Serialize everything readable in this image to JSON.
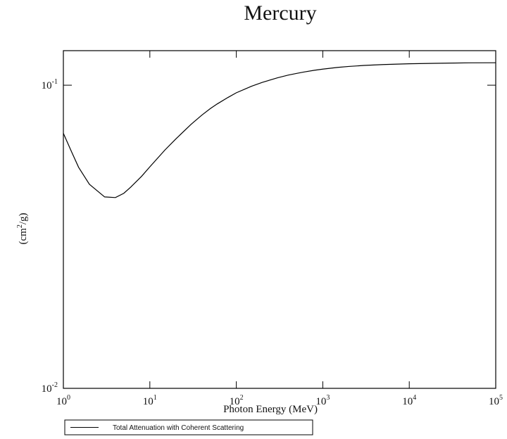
{
  "chart_data": {
    "type": "line",
    "title": "Mercury",
    "xlabel": "Photon Energy (MeV)",
    "ylabel": "(cm²/g)",
    "ylabel_parts": {
      "prefix": "(cm",
      "sup": "2",
      "suffix": "/g)"
    },
    "x_scale": "log",
    "y_scale": "log",
    "xlim": [
      1,
      100000
    ],
    "ylim": [
      0.01,
      0.13
    ],
    "x_ticks": [
      {
        "base": "10",
        "exp": "0",
        "value": 1
      },
      {
        "base": "10",
        "exp": "1",
        "value": 10
      },
      {
        "base": "10",
        "exp": "2",
        "value": 100
      },
      {
        "base": "10",
        "exp": "3",
        "value": 1000
      },
      {
        "base": "10",
        "exp": "4",
        "value": 10000
      },
      {
        "base": "10",
        "exp": "5",
        "value": 100000
      }
    ],
    "y_ticks": [
      {
        "base": "10",
        "exp": "-2",
        "value": 0.01
      },
      {
        "base": "10",
        "exp": "-1",
        "value": 0.1
      }
    ],
    "grid": false,
    "legend_position": "bottom-left",
    "series": [
      {
        "name": "Total Attenuation with Coherent Scattering",
        "color": "#000000",
        "x": [
          1,
          1.25,
          1.5,
          2,
          3,
          4,
          5,
          6,
          8,
          10,
          15,
          20,
          30,
          40,
          50,
          60,
          80,
          100,
          150,
          200,
          300,
          400,
          500,
          600,
          800,
          1000,
          1500,
          2000,
          3000,
          5000,
          10000,
          20000,
          50000,
          100000
        ],
        "y": [
          0.0694,
          0.0601,
          0.0536,
          0.0471,
          0.0428,
          0.0426,
          0.044,
          0.0461,
          0.05,
          0.0538,
          0.0612,
          0.0665,
          0.0743,
          0.0797,
          0.0837,
          0.0867,
          0.0911,
          0.0944,
          0.0992,
          0.1022,
          0.1058,
          0.108,
          0.1094,
          0.1105,
          0.112,
          0.113,
          0.1145,
          0.1153,
          0.1162,
          0.117,
          0.1177,
          0.1181,
          0.1185,
          0.1186
        ]
      }
    ]
  }
}
